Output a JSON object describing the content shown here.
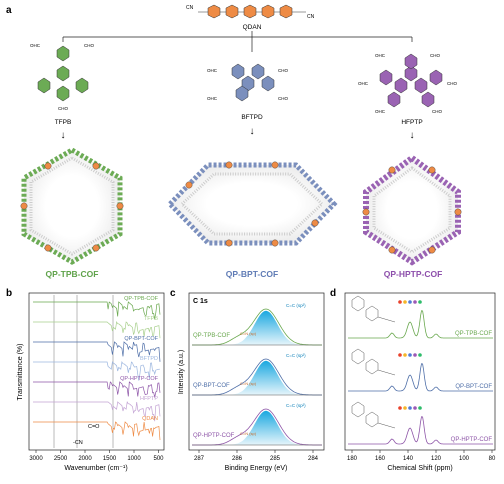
{
  "panel_a": {
    "label": "a",
    "linker": "QDAN",
    "linker_cn": "CN",
    "cho": "CHO",
    "ohc": "OHC",
    "monomers": [
      {
        "name": "TFPB",
        "color": "#6cab55"
      },
      {
        "name": "BFTPD",
        "color": "#7b8fbd"
      },
      {
        "name": "HFPTP",
        "color": "#9a63b3"
      }
    ],
    "cofs": [
      {
        "name": "QP-TPB-COF",
        "color": "#5fa24a"
      },
      {
        "name": "QP-BPT-COF",
        "color": "#5f7bb5"
      },
      {
        "name": "QP-HPTP-COF",
        "color": "#8d4fab"
      }
    ],
    "linker_color": "#ee8b45"
  },
  "panel_b": {
    "label": "b",
    "traces": [
      {
        "name": "QP-TPB-COF",
        "color": "#6aa84f"
      },
      {
        "name": "TFPB",
        "color": "#a9d08e"
      },
      {
        "name": "QP-BPT-COF",
        "color": "#4f6fa8"
      },
      {
        "name": "BFTPD",
        "color": "#9cb6df"
      },
      {
        "name": "QP-HPTP-COF",
        "color": "#8e56a8"
      },
      {
        "name": "HFPTP",
        "color": "#c3a3d4"
      },
      {
        "name": "QDAN",
        "color": "#ee8b45"
      }
    ],
    "annotations": [
      "C=O",
      "-CN"
    ],
    "xlabel": "Wavenumber (cm⁻¹)",
    "ylabel": "Transmittance (%)",
    "xticks": [
      "3000",
      "2500",
      "2000",
      "1500",
      "1000",
      "500"
    ]
  },
  "panel_c": {
    "label": "c",
    "title": "C 1s",
    "spectra": [
      {
        "name": "QP-TPB-COF",
        "color": "#6aa84f",
        "peak_main": "C=C (sp²)",
        "peak_minor": "C=N (sp)"
      },
      {
        "name": "QP-BPT-COF",
        "color": "#4f6fa8",
        "peak_main": "C=C (sp²)",
        "peak_minor": "C=N (sp)"
      },
      {
        "name": "QP-HPTP-COF",
        "color": "#8e56a8",
        "peak_main": "C=C (sp²)",
        "peak_minor": "C=N (sp)"
      }
    ],
    "xlabel": "Binding Energy (eV)",
    "ylabel": "Intensity (a.u.)",
    "xticks": [
      "287",
      "286",
      "285",
      "284"
    ]
  },
  "panel_d": {
    "label": "d",
    "spectra": [
      {
        "name": "QP-TPB-COF",
        "color": "#6aa84f"
      },
      {
        "name": "QP-BPT-COF",
        "color": "#4f6fa8"
      },
      {
        "name": "QP-HPTP-COF",
        "color": "#8e56a8"
      }
    ],
    "xlabel": "Chemical Shift (ppm)",
    "xticks": [
      "180",
      "160",
      "140",
      "120",
      "100",
      "80"
    ]
  }
}
